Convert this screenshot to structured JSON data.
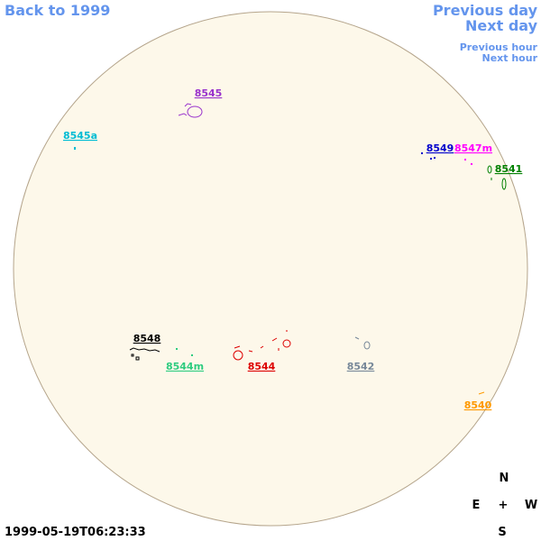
{
  "nav": {
    "back": "Back to 1999",
    "previous_day": "Previous day",
    "next_day": "Next day",
    "previous_hour": "Previous hour",
    "next_hour": "Next hour"
  },
  "regions": [
    {
      "label": "8545",
      "color": "#9932cc"
    },
    {
      "label": "8545a",
      "color": "#00bcd4"
    },
    {
      "label": "8549",
      "color": "#0000cc"
    },
    {
      "label": "8547m",
      "color": "#ff00ff"
    },
    {
      "label": "8541",
      "color": "#008000"
    },
    {
      "label": "8548",
      "color": "#000000"
    },
    {
      "label": "8544m",
      "color": "#2ecc80"
    },
    {
      "label": "8544",
      "color": "#dd0000"
    },
    {
      "label": "8542",
      "color": "#778899"
    },
    {
      "label": "8540",
      "color": "#ff9900"
    }
  ],
  "timestamp": "1999-05-19T06:23:33",
  "compass": {
    "north": "N",
    "east": "E",
    "center": "+",
    "west": "W",
    "south": "S"
  }
}
